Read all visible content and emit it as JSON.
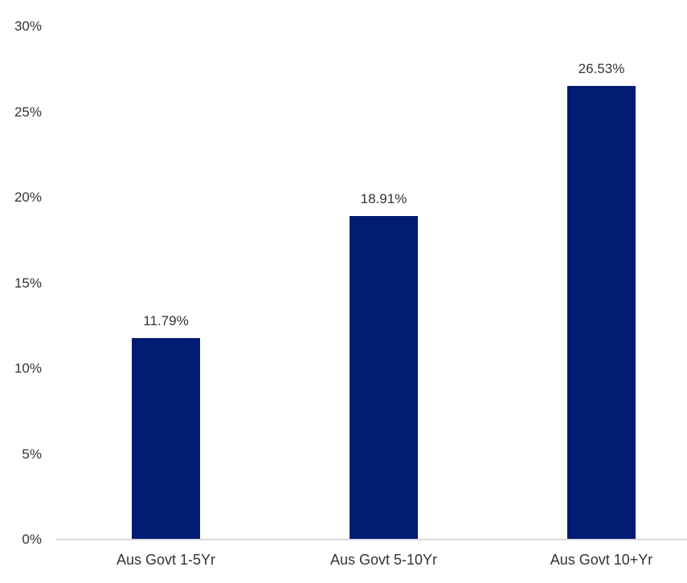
{
  "chart_data": {
    "type": "bar",
    "title": "",
    "xlabel": "",
    "ylabel": "",
    "categories": [
      "Aus Govt 1-5Yr",
      "Aus Govt 5-10Yr",
      "Aus Govt 10+Yr"
    ],
    "values": [
      11.79,
      18.91,
      26.53
    ],
    "value_labels": [
      "11.79%",
      "18.91%",
      "26.53%"
    ],
    "ylim": [
      0,
      30
    ],
    "ytick_step": 5,
    "ytick_values": [
      0,
      5,
      10,
      15,
      20,
      25,
      30
    ],
    "ytick_labels": [
      "0%",
      "5%",
      "10%",
      "15%",
      "20%",
      "25%",
      "30%"
    ],
    "grid": false,
    "legend": false,
    "colors": {
      "bar": "#021b73",
      "axis_line": "#d9d9d9",
      "text": "#333333",
      "background": "#ffffff"
    }
  }
}
